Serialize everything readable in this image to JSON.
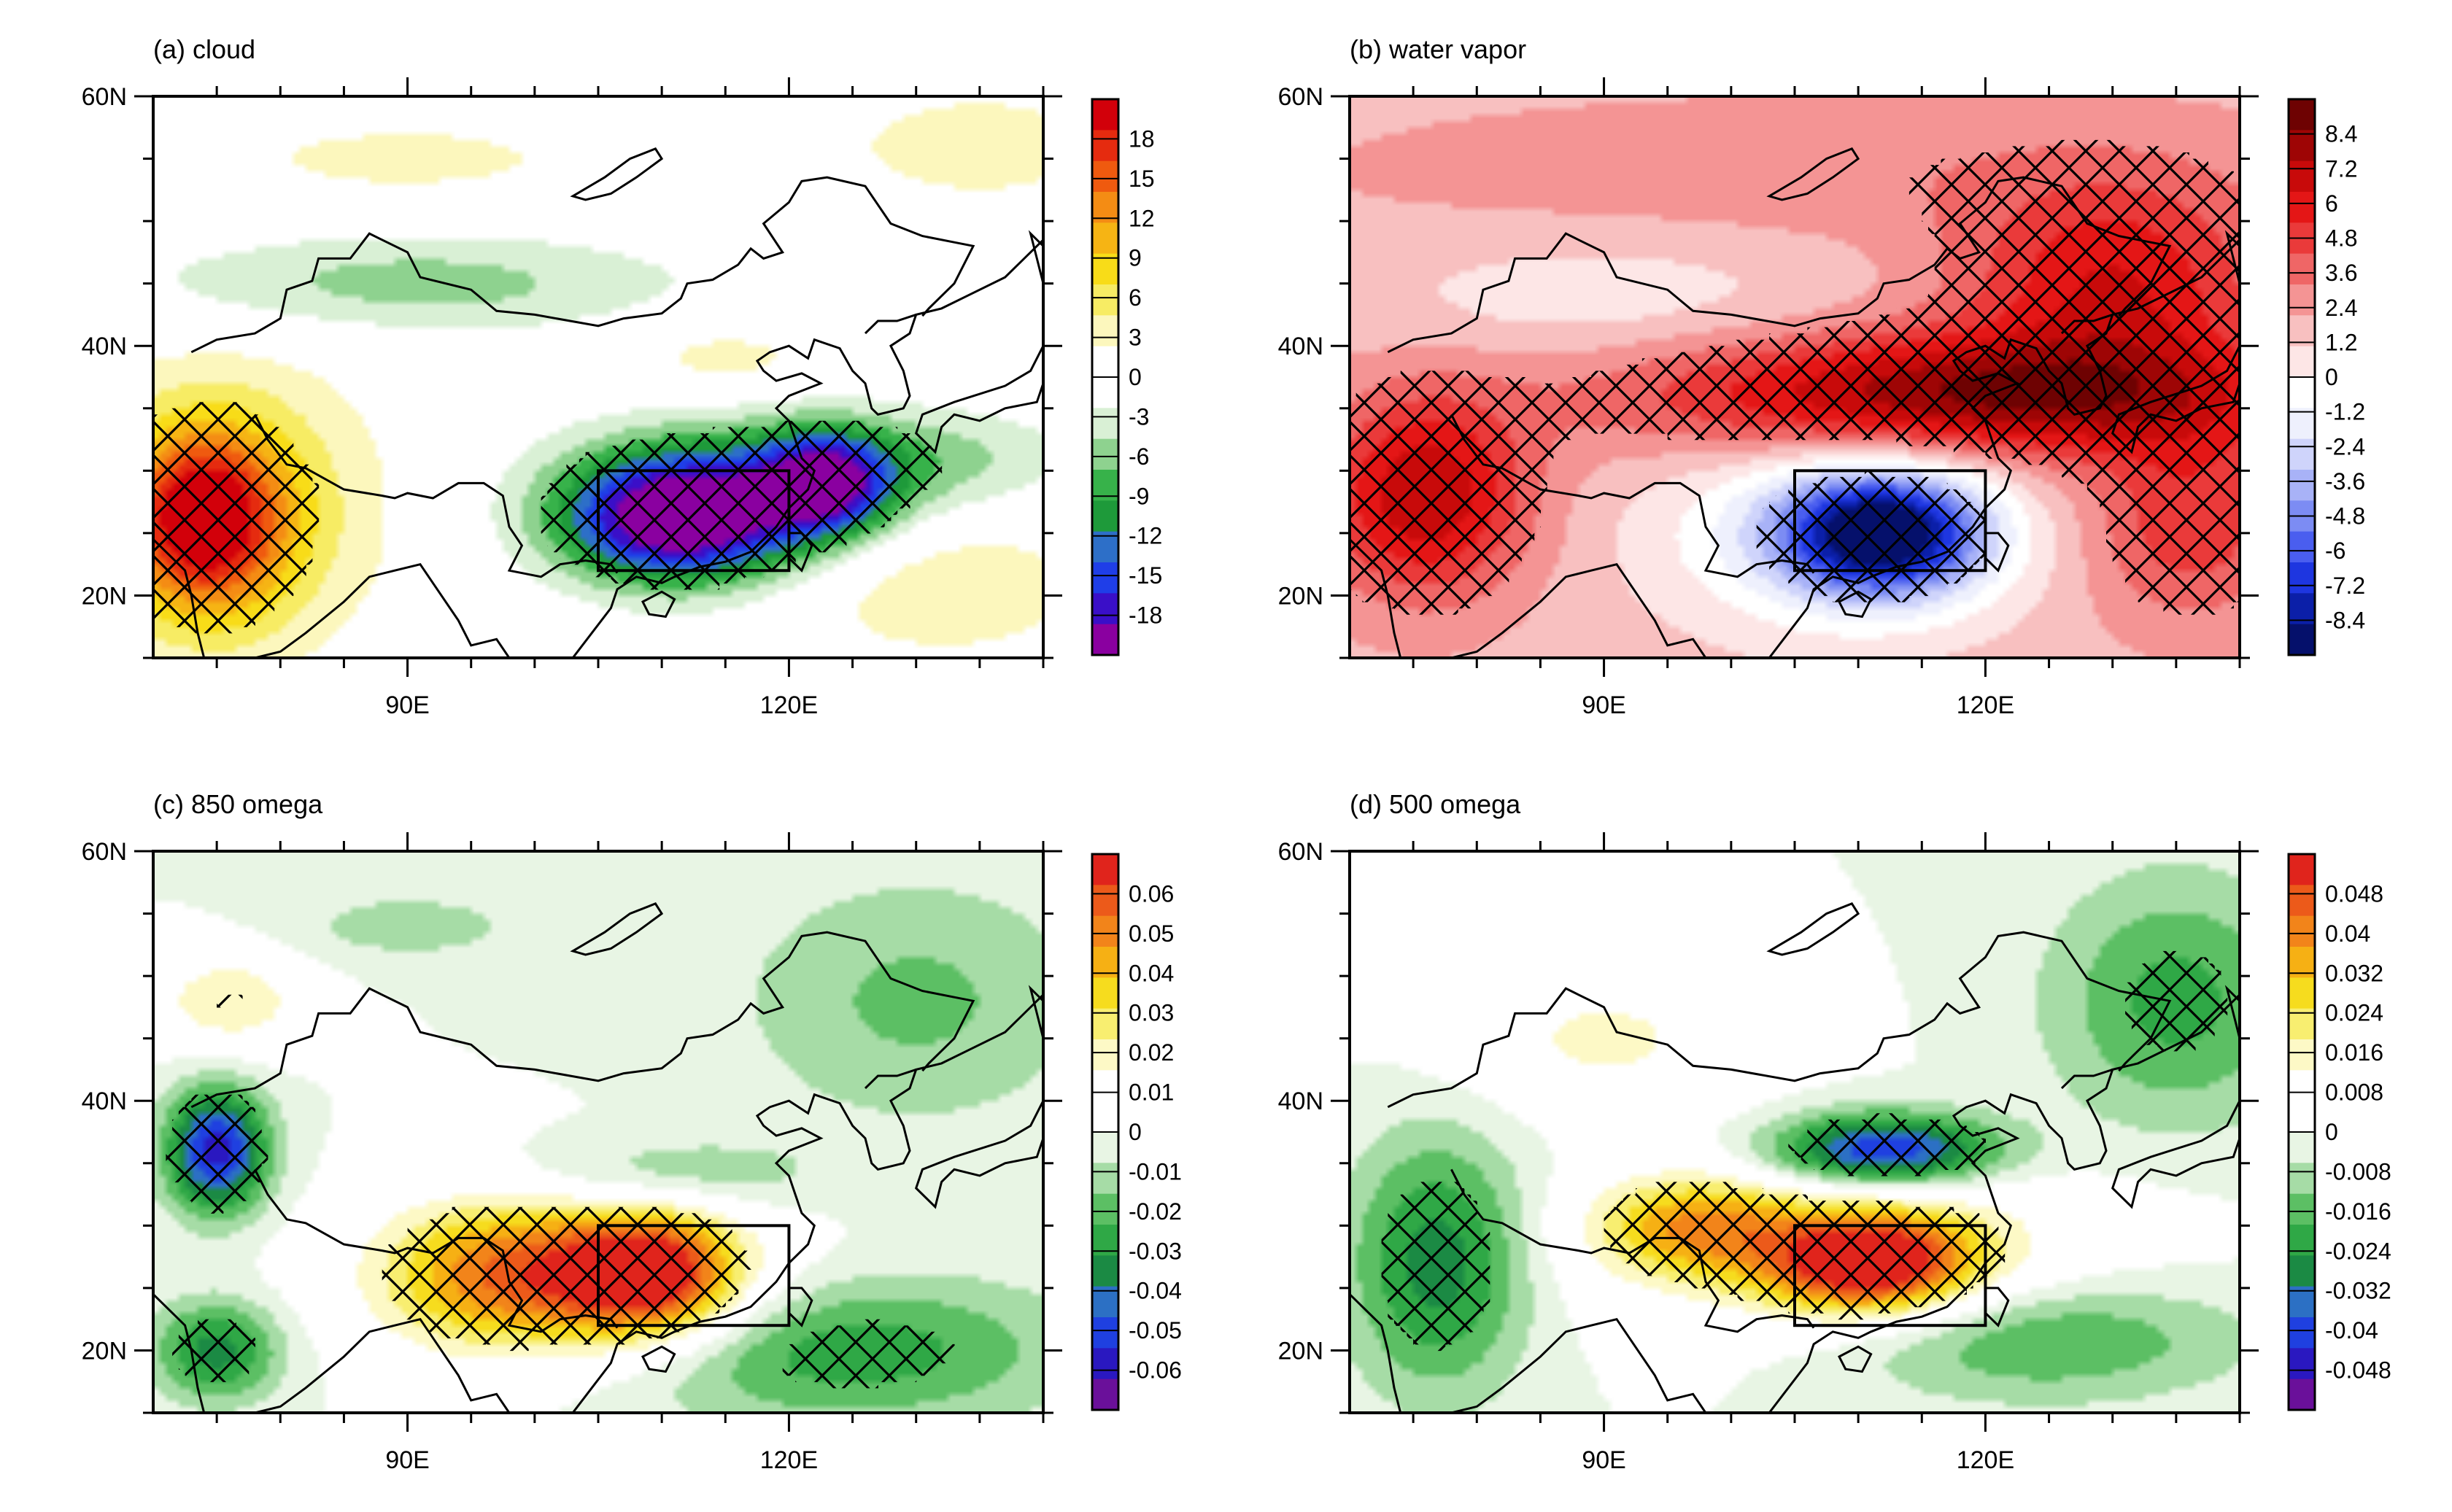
{
  "figure": {
    "panels": [
      {
        "id": "a",
        "title": "(a) cloud",
        "colormap": "cloud",
        "colorbar_labels": [
          "18",
          "15",
          "12",
          "9",
          "6",
          "3",
          "0",
          "-3",
          "-6",
          "-9",
          "-12",
          "-15",
          "-18"
        ],
        "fields": [
          {
            "lon": 111,
            "lat": 26,
            "v": -15,
            "rx": 9,
            "ry": 5
          },
          {
            "lon": 123,
            "lat": 29,
            "v": -12,
            "rx": 5,
            "ry": 4
          },
          {
            "lon": 116,
            "lat": 28,
            "v": -8,
            "rx": 14,
            "ry": 6
          },
          {
            "lon": 90,
            "lat": 45,
            "v": -5,
            "rx": 22,
            "ry": 4
          },
          {
            "lon": 131,
            "lat": 31,
            "v": -4,
            "rx": 12,
            "ry": 4
          },
          {
            "lon": 74,
            "lat": 26,
            "v": 15,
            "rx": 6,
            "ry": 7
          },
          {
            "lon": 76,
            "lat": 27,
            "v": 6,
            "rx": 12,
            "ry": 12
          },
          {
            "lon": 132,
            "lat": 21,
            "v": 4,
            "rx": 12,
            "ry": 6
          },
          {
            "lon": 90,
            "lat": 55,
            "v": 3,
            "rx": 14,
            "ry": 3
          },
          {
            "lon": 135,
            "lat": 56,
            "v": 4,
            "rx": 10,
            "ry": 4
          },
          {
            "lon": 115,
            "lat": 39,
            "v": 3,
            "rx": 8,
            "ry": 3
          }
        ]
      },
      {
        "id": "b",
        "title": "(b) water vapor",
        "colormap": "redblue",
        "colorbar_labels": [
          "8.4",
          "7.2",
          "6",
          "4.8",
          "3.6",
          "2.4",
          "1.2",
          "0",
          "-1.2",
          "-2.4",
          "-3.6",
          "-4.8",
          "-6",
          "-7.2",
          "-8.4"
        ],
        "fields": [
          {
            "bg": 1.5
          },
          {
            "lon": 108,
            "lat": 54,
            "v": 1.0,
            "rx": 40,
            "ry": 6
          },
          {
            "lon": 90,
            "lat": 44,
            "v": -1.2,
            "rx": 18,
            "ry": 5
          },
          {
            "lon": 118,
            "lat": 36,
            "v": 6,
            "rx": 25,
            "ry": 5
          },
          {
            "lon": 76,
            "lat": 28,
            "v": 5,
            "rx": 8,
            "ry": 8
          },
          {
            "lon": 130,
            "lat": 45,
            "v": 4,
            "rx": 12,
            "ry": 8
          },
          {
            "lon": 112,
            "lat": 25,
            "v": -8.4,
            "rx": 8,
            "ry": 5
          },
          {
            "lon": 108,
            "lat": 25,
            "v": -3,
            "rx": 14,
            "ry": 8
          },
          {
            "lon": 136,
            "lat": 26,
            "v": 3,
            "rx": 8,
            "ry": 8
          }
        ]
      },
      {
        "id": "c",
        "title": "(c) 850 omega",
        "colormap": "omega",
        "colorbar_labels": [
          "0.06",
          "0.05",
          "0.04",
          "0.03",
          "0.02",
          "0.01",
          "0",
          "-0.01",
          "-0.02",
          "-0.03",
          "-0.04",
          "-0.05",
          "-0.06"
        ],
        "fields": [
          {
            "lon": 109,
            "lat": 26,
            "v": 0.055,
            "rx": 7,
            "ry": 5
          },
          {
            "lon": 97,
            "lat": 26,
            "v": 0.03,
            "rx": 9,
            "ry": 6
          },
          {
            "lon": 103,
            "lat": 26,
            "v": 0.02,
            "rx": 16,
            "ry": 7
          },
          {
            "lon": 76,
            "lat": 48,
            "v": 0.02,
            "rx": 6,
            "ry": 4
          },
          {
            "lon": 75,
            "lat": 36,
            "v": -0.05,
            "rx": 4,
            "ry": 5
          },
          {
            "lon": 110,
            "lat": 34,
            "v": -0.015,
            "rx": 12,
            "ry": 3
          },
          {
            "lon": 130,
            "lat": 48,
            "v": -0.015,
            "rx": 14,
            "ry": 10
          },
          {
            "lon": 90,
            "lat": 54,
            "v": -0.01,
            "rx": 10,
            "ry": 3
          },
          {
            "lon": 124,
            "lat": 20,
            "v": -0.025,
            "rx": 18,
            "ry": 6
          },
          {
            "lon": 75,
            "lat": 20,
            "v": -0.03,
            "rx": 5,
            "ry": 4
          }
        ]
      },
      {
        "id": "d",
        "title": "(d) 500 omega",
        "colormap": "omega",
        "colorbar_labels": [
          "0.048",
          "0.04",
          "0.032",
          "0.024",
          "0.016",
          "0.008",
          "0",
          "-0.008",
          "-0.016",
          "-0.024",
          "-0.032",
          "-0.04",
          "-0.048"
        ],
        "fields": [
          {
            "lon": 111,
            "lat": 27,
            "v": 0.045,
            "rx": 8,
            "ry": 4
          },
          {
            "lon": 97,
            "lat": 30,
            "v": 0.025,
            "rx": 8,
            "ry": 4
          },
          {
            "lon": 110,
            "lat": 28,
            "v": 0.015,
            "rx": 20,
            "ry": 7
          },
          {
            "lon": 90,
            "lat": 45,
            "v": 0.012,
            "rx": 12,
            "ry": 6
          },
          {
            "lon": 112,
            "lat": 36,
            "v": -0.04,
            "rx": 9,
            "ry": 3
          },
          {
            "lon": 77,
            "lat": 27,
            "v": -0.025,
            "rx": 7,
            "ry": 10
          },
          {
            "lon": 135,
            "lat": 48,
            "v": -0.018,
            "rx": 10,
            "ry": 10
          },
          {
            "lon": 124,
            "lat": 21,
            "v": -0.018,
            "rx": 16,
            "ry": 5
          }
        ]
      }
    ],
    "axes": {
      "lat_ticks": [
        20,
        40,
        60
      ],
      "lat_labels": [
        "20N",
        "40N",
        "60N"
      ],
      "lon_ticks": [
        90,
        120
      ],
      "lon_labels": [
        "90E",
        "120E"
      ],
      "lon_range": [
        70,
        140
      ],
      "lat_range": [
        15,
        60
      ],
      "box": {
        "lon": [
          105,
          120
        ],
        "lat": [
          22,
          30
        ]
      }
    },
    "colors": {
      "cloud": [
        "#8a00a0",
        "#3a0fc8",
        "#1f3ee8",
        "#2d6fc8",
        "#1e9a3a",
        "#37b24a",
        "#8ed28f",
        "#d9f0d5",
        "#ffffff",
        "#ffffff",
        "#fcf7bd",
        "#f7ec64",
        "#f8dc18",
        "#f6b414",
        "#f48c14",
        "#ef5a0f",
        "#e52b0f",
        "#d2000a"
      ],
      "redblue": [
        "#05106b",
        "#0b1fa8",
        "#1e36e0",
        "#4a5eef",
        "#7c8cf3",
        "#a8b2f7",
        "#cfd4fb",
        "#eef0fd",
        "#ffffff",
        "#fde6e6",
        "#f8c0c0",
        "#f49494",
        "#ef6666",
        "#ea3a3a",
        "#e41616",
        "#c80a0a",
        "#9e0505",
        "#6e0202"
      ],
      "omega": [
        "#6a109a",
        "#2a18c0",
        "#1f40e0",
        "#2c70c4",
        "#1b8a44",
        "#2fa846",
        "#5cbf64",
        "#a6dca6",
        "#e8f5e4",
        "#ffffff",
        "#ffffff",
        "#fdf9c6",
        "#f8ee70",
        "#f6dc1e",
        "#f6b014",
        "#f2841a",
        "#ec5a1a",
        "#e0241c"
      ]
    }
  }
}
